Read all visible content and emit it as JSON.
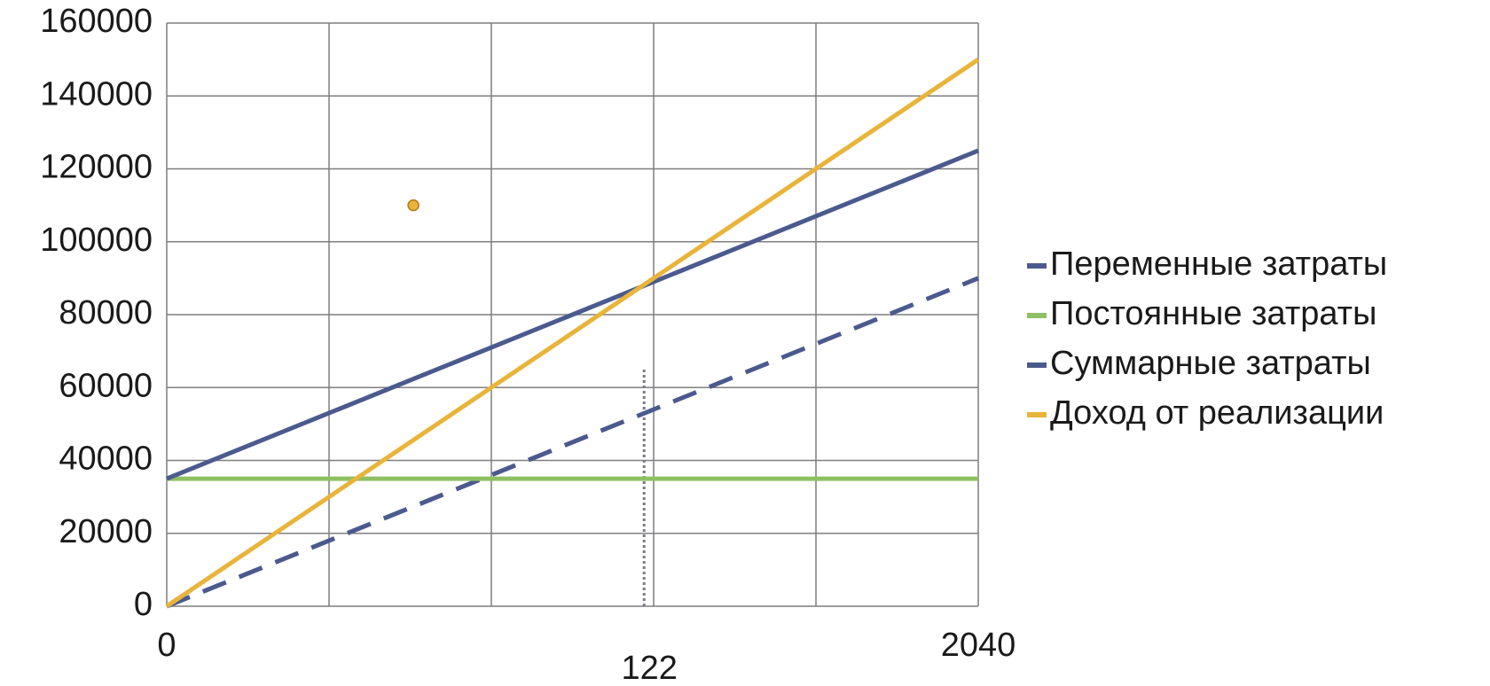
{
  "chart_data": {
    "type": "line",
    "x": [
      0,
      2040
    ],
    "series": [
      {
        "name": "Переменные затраты",
        "color": "#4b5a8e",
        "dashed": true,
        "values": [
          0,
          90000
        ]
      },
      {
        "name": "Постоянные затраты",
        "color": "#8dc063",
        "dashed": false,
        "values": [
          35000,
          35000
        ]
      },
      {
        "name": "Суммарные затраты",
        "color": "#4b5a8e",
        "dashed": false,
        "values": [
          35000,
          125000
        ]
      },
      {
        "name": "Доход от реализации",
        "color": "#e8b43a",
        "dashed": false,
        "values": [
          0,
          150000
        ]
      }
    ],
    "xlim": [
      0,
      2040
    ],
    "xticks": [
      0,
      2040
    ],
    "xgrid": [
      0,
      408,
      816,
      1224,
      1632,
      2040
    ],
    "ylim": [
      0,
      160000
    ],
    "yticks": [
      0,
      20000,
      40000,
      60000,
      80000,
      100000,
      120000,
      140000,
      160000
    ],
    "grid": true,
    "legend": "right",
    "reference_line": {
      "x": 1200,
      "y_top": 65000,
      "label": "122",
      "color": "#7a7a8a"
    },
    "marker": {
      "x": 620,
      "y": 110000,
      "color": "#e8b43a"
    }
  }
}
